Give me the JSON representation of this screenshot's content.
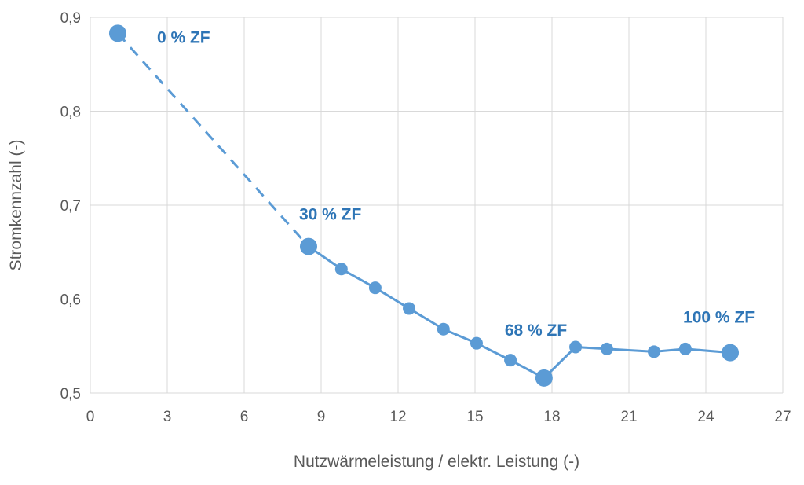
{
  "chart_data": {
    "type": "line",
    "title": "",
    "xlabel": "Nutzwärmeleistung / elektr. Leistung (-)",
    "ylabel": "Stromkennzahl (-)",
    "xlim": [
      0,
      27
    ],
    "ylim": [
      0.5,
      0.9
    ],
    "xticks": [
      "0",
      "3",
      "6",
      "9",
      "12",
      "15",
      "18",
      "21",
      "24",
      "27"
    ],
    "yticks": [
      "0,5",
      "0,6",
      "0,7",
      "0,8",
      "0,9"
    ],
    "grid": true,
    "color": "#5b9bd5",
    "label_color": "#2e75b6",
    "series": [
      {
        "name": "Stromkennzahl",
        "x": [
          1.07,
          8.51,
          9.79,
          11.11,
          12.43,
          13.77,
          15.06,
          16.38,
          17.69,
          18.92,
          20.14,
          21.98,
          23.2,
          24.95
        ],
        "y": [
          0.883,
          0.656,
          0.632,
          0.612,
          0.59,
          0.568,
          0.553,
          0.535,
          0.516,
          0.549,
          0.547,
          0.544,
          0.547,
          0.543
        ],
        "dashed_segments": [
          0
        ],
        "highlighted_points": [
          0,
          1,
          8,
          13
        ]
      }
    ],
    "annotations": [
      {
        "text": "0 % ZF",
        "point": 0
      },
      {
        "text": "30 % ZF",
        "point": 1
      },
      {
        "text": "68 % ZF",
        "point": 8
      },
      {
        "text": "100 % ZF",
        "point": 13
      }
    ]
  }
}
